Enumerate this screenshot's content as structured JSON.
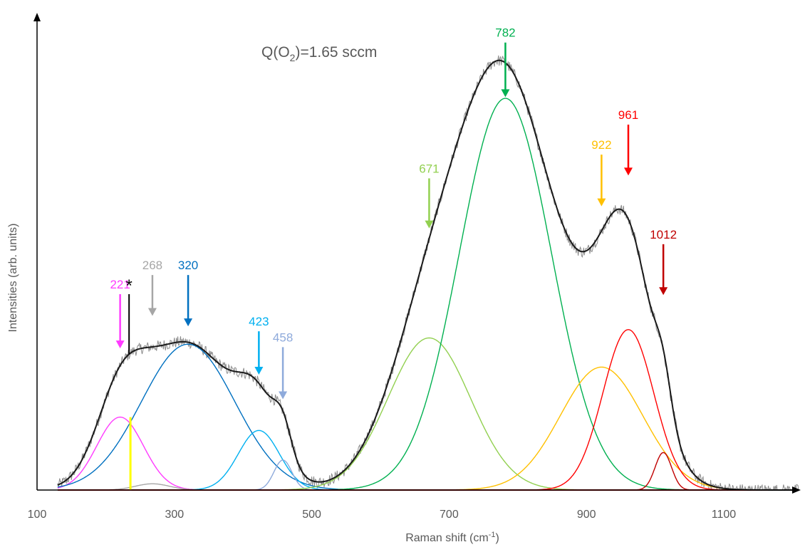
{
  "chart_data": {
    "type": "line",
    "title": "",
    "annotation": {
      "text": "Q(O",
      "sub": "2",
      "text_after": ")=1.65 sccm"
    },
    "xlabel": {
      "text": "Raman shift (cm",
      "sup": "-1",
      "text_after": ")"
    },
    "ylabel": "Intensities (arb. units)",
    "xlim": [
      100,
      1210
    ],
    "ylim": [
      0,
      1.0
    ],
    "xticks": [
      100,
      300,
      500,
      700,
      900,
      1100
    ],
    "xtick_labels": [
      "100",
      "300",
      "500",
      "700",
      "900",
      "1100"
    ],
    "grid": false,
    "legend": "none",
    "spike_marker": {
      "text": "*",
      "x": 236,
      "height": 0.47
    },
    "spectrum_color": "#8c8c8c",
    "fit_color": "#1a1a1a",
    "baseline_color": "#c00000",
    "components": [
      {
        "label": "221",
        "center": 221,
        "amp": 0.175,
        "sigma": 34,
        "color": "#ff3bff",
        "arrow_top": 0.47,
        "arrow_bottom": 0.34
      },
      {
        "label": "268",
        "center": 268,
        "amp": 0.015,
        "sigma": 25,
        "color": "#a6a6a6",
        "arrow_top": 0.516,
        "arrow_bottom": 0.418
      },
      {
        "label": "320",
        "center": 320,
        "amp": 0.35,
        "sigma": 68,
        "color": "#0070c0",
        "arrow_top": 0.516,
        "arrow_bottom": 0.393
      },
      {
        "label": "423",
        "center": 423,
        "amp": 0.143,
        "sigma": 30,
        "color": "#00b0f0",
        "arrow_top": 0.381,
        "arrow_bottom": 0.277
      },
      {
        "label": "458",
        "center": 458,
        "amp": 0.072,
        "sigma": 13,
        "color": "#8eaadb",
        "arrow_top": 0.343,
        "arrow_bottom": 0.218
      },
      {
        "label": "671",
        "center": 671,
        "amp": 0.365,
        "sigma": 60,
        "color": "#92d050",
        "arrow_top": 0.748,
        "arrow_bottom": 0.628
      },
      {
        "label": "782",
        "center": 782,
        "amp": 0.94,
        "sigma": 67,
        "color": "#00b050",
        "arrow_top": 1.074,
        "arrow_bottom": 0.943
      },
      {
        "label": "922",
        "center": 922,
        "amp": 0.295,
        "sigma": 60,
        "color": "#ffc000",
        "arrow_top": 0.805,
        "arrow_bottom": 0.681
      },
      {
        "label": "961",
        "center": 961,
        "amp": 0.385,
        "sigma": 37,
        "color": "#ff0000",
        "arrow_top": 0.877,
        "arrow_bottom": 0.755
      },
      {
        "label": "1012",
        "center": 1012,
        "amp": 0.09,
        "sigma": 12,
        "color": "#c00000",
        "arrow_top": 0.59,
        "arrow_bottom": 0.468
      }
    ],
    "spike_line": {
      "x": 236,
      "height": 0.175,
      "color": "#ffff00"
    }
  }
}
